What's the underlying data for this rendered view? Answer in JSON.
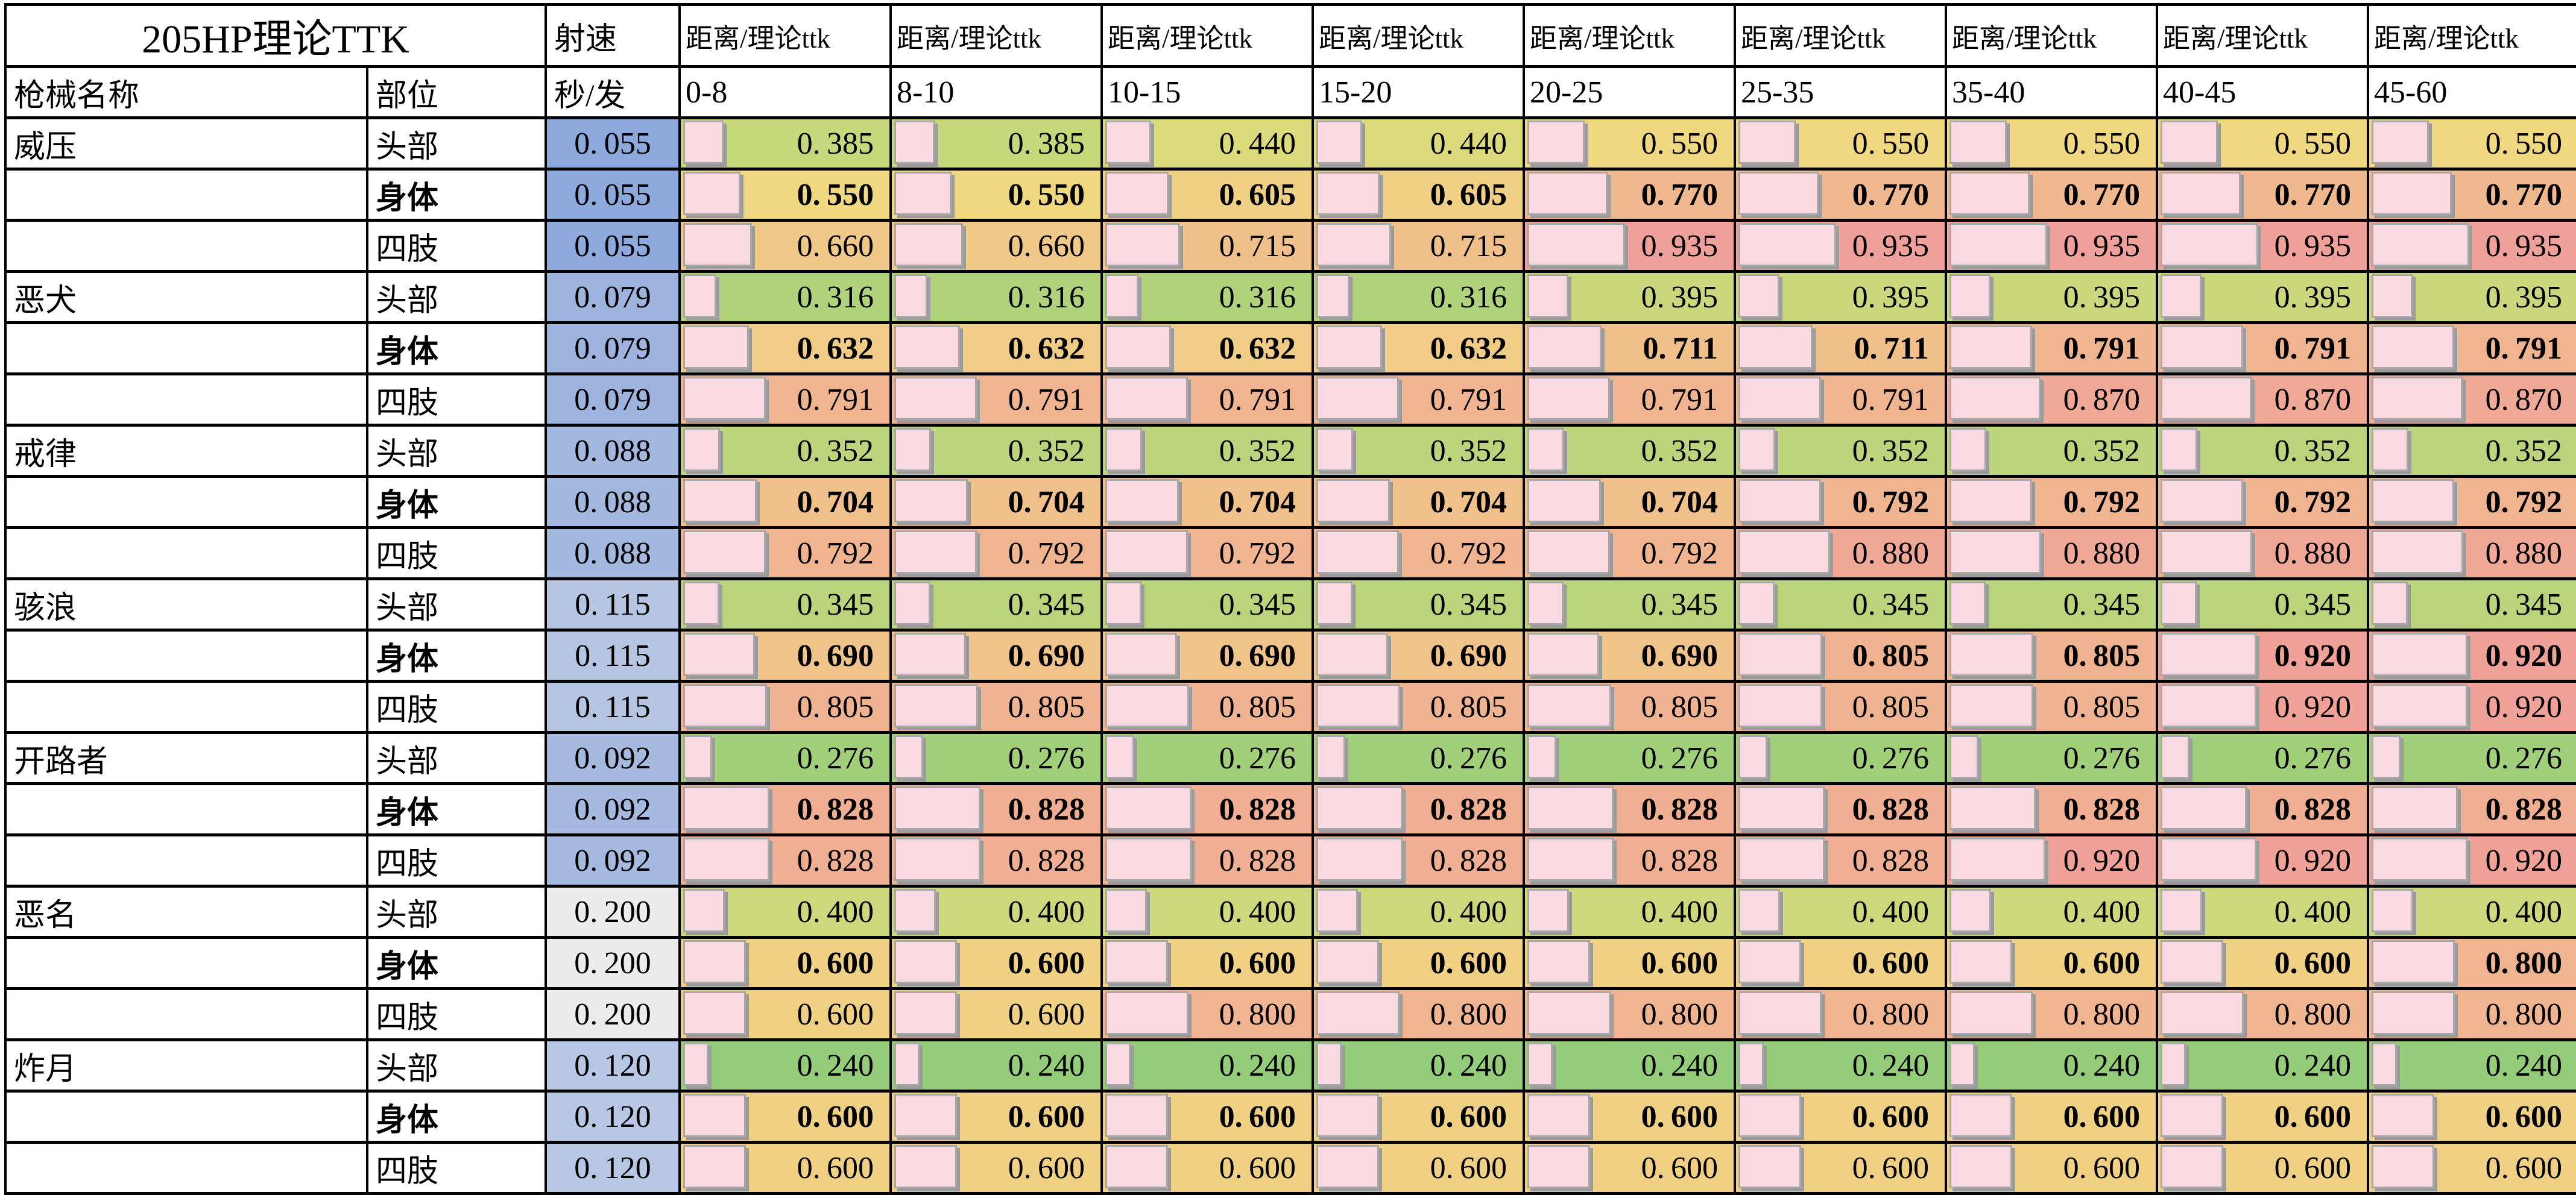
{
  "title": "205HP理论TTK",
  "headers": {
    "weapon_col": "枪械名称",
    "part_col": "部位",
    "rate_label": "射速",
    "rate_unit": "秒/发",
    "distance_header": "距离/理论ttk",
    "distance_ranges": [
      "0-8",
      "8-10",
      "10-15",
      "15-20",
      "20-25",
      "25-35",
      "35-40",
      "40-45",
      "45-60"
    ]
  },
  "colors": {
    "grid_line": "#000000",
    "ttk_scale": {
      "min_value": 0.24,
      "min_color": "#94CC7A",
      "mid_value": 0.5,
      "mid_color": "#F0DF7D",
      "max_value": 0.935,
      "max_color": "#F0A09A"
    },
    "rate_scale": {
      "min_value": 0.055,
      "min_color": "#8EA9DB",
      "max_value": 0.2,
      "max_color": "#ECECEC"
    },
    "bar_fill": "#F9D9E2",
    "bar_border": "#A8A8A8",
    "bar_shadow": "#9B9B9B"
  },
  "weapons": [
    {
      "name": "威压",
      "rate": "0.055",
      "rows": [
        {
          "part": "头部",
          "bold": false,
          "values": [
            "0.385",
            "0.385",
            "0.440",
            "0.440",
            "0.550",
            "0.550",
            "0.550",
            "0.550",
            "0.550"
          ]
        },
        {
          "part": "身体",
          "bold": true,
          "values": [
            "0.550",
            "0.550",
            "0.605",
            "0.605",
            "0.770",
            "0.770",
            "0.770",
            "0.770",
            "0.770"
          ]
        },
        {
          "part": "四肢",
          "bold": false,
          "values": [
            "0.660",
            "0.660",
            "0.715",
            "0.715",
            "0.935",
            "0.935",
            "0.935",
            "0.935",
            "0.935"
          ]
        }
      ]
    },
    {
      "name": "恶犬",
      "rate": "0.079",
      "rows": [
        {
          "part": "头部",
          "bold": false,
          "values": [
            "0.316",
            "0.316",
            "0.316",
            "0.316",
            "0.395",
            "0.395",
            "0.395",
            "0.395",
            "0.395"
          ]
        },
        {
          "part": "身体",
          "bold": true,
          "values": [
            "0.632",
            "0.632",
            "0.632",
            "0.632",
            "0.711",
            "0.711",
            "0.791",
            "0.791",
            "0.791"
          ]
        },
        {
          "part": "四肢",
          "bold": false,
          "values": [
            "0.791",
            "0.791",
            "0.791",
            "0.791",
            "0.791",
            "0.791",
            "0.870",
            "0.870",
            "0.870"
          ]
        }
      ]
    },
    {
      "name": "戒律",
      "rate": "0.088",
      "rows": [
        {
          "part": "头部",
          "bold": false,
          "values": [
            "0.352",
            "0.352",
            "0.352",
            "0.352",
            "0.352",
            "0.352",
            "0.352",
            "0.352",
            "0.352"
          ]
        },
        {
          "part": "身体",
          "bold": true,
          "values": [
            "0.704",
            "0.704",
            "0.704",
            "0.704",
            "0.704",
            "0.792",
            "0.792",
            "0.792",
            "0.792"
          ]
        },
        {
          "part": "四肢",
          "bold": false,
          "values": [
            "0.792",
            "0.792",
            "0.792",
            "0.792",
            "0.792",
            "0.880",
            "0.880",
            "0.880",
            "0.880"
          ]
        }
      ]
    },
    {
      "name": "骇浪",
      "rate": "0.115",
      "rows": [
        {
          "part": "头部",
          "bold": false,
          "values": [
            "0.345",
            "0.345",
            "0.345",
            "0.345",
            "0.345",
            "0.345",
            "0.345",
            "0.345",
            "0.345"
          ]
        },
        {
          "part": "身体",
          "bold": true,
          "values": [
            "0.690",
            "0.690",
            "0.690",
            "0.690",
            "0.690",
            "0.805",
            "0.805",
            "0.920",
            "0.920"
          ]
        },
        {
          "part": "四肢",
          "bold": false,
          "values": [
            "0.805",
            "0.805",
            "0.805",
            "0.805",
            "0.805",
            "0.805",
            "0.805",
            "0.920",
            "0.920"
          ]
        }
      ]
    },
    {
      "name": "开路者",
      "rate": "0.092",
      "rows": [
        {
          "part": "头部",
          "bold": false,
          "values": [
            "0.276",
            "0.276",
            "0.276",
            "0.276",
            "0.276",
            "0.276",
            "0.276",
            "0.276",
            "0.276"
          ]
        },
        {
          "part": "身体",
          "bold": true,
          "values": [
            "0.828",
            "0.828",
            "0.828",
            "0.828",
            "0.828",
            "0.828",
            "0.828",
            "0.828",
            "0.828"
          ]
        },
        {
          "part": "四肢",
          "bold": false,
          "values": [
            "0.828",
            "0.828",
            "0.828",
            "0.828",
            "0.828",
            "0.828",
            "0.920",
            "0.920",
            "0.920"
          ]
        }
      ]
    },
    {
      "name": "恶名",
      "rate": "0.200",
      "rows": [
        {
          "part": "头部",
          "bold": false,
          "values": [
            "0.400",
            "0.400",
            "0.400",
            "0.400",
            "0.400",
            "0.400",
            "0.400",
            "0.400",
            "0.400"
          ]
        },
        {
          "part": "身体",
          "bold": true,
          "values": [
            "0.600",
            "0.600",
            "0.600",
            "0.600",
            "0.600",
            "0.600",
            "0.600",
            "0.600",
            "0.800"
          ]
        },
        {
          "part": "四肢",
          "bold": false,
          "values": [
            "0.600",
            "0.600",
            "0.800",
            "0.800",
            "0.800",
            "0.800",
            "0.800",
            "0.800",
            "0.800"
          ]
        }
      ]
    },
    {
      "name": "炸月",
      "rate": "0.120",
      "rows": [
        {
          "part": "头部",
          "bold": false,
          "values": [
            "0.240",
            "0.240",
            "0.240",
            "0.240",
            "0.240",
            "0.240",
            "0.240",
            "0.240",
            "0.240"
          ]
        },
        {
          "part": "身体",
          "bold": true,
          "values": [
            "0.600",
            "0.600",
            "0.600",
            "0.600",
            "0.600",
            "0.600",
            "0.600",
            "0.600",
            "0.600"
          ]
        },
        {
          "part": "四肢",
          "bold": false,
          "values": [
            "0.600",
            "0.600",
            "0.600",
            "0.600",
            "0.600",
            "0.600",
            "0.600",
            "0.600",
            "0.600"
          ]
        }
      ]
    }
  ]
}
